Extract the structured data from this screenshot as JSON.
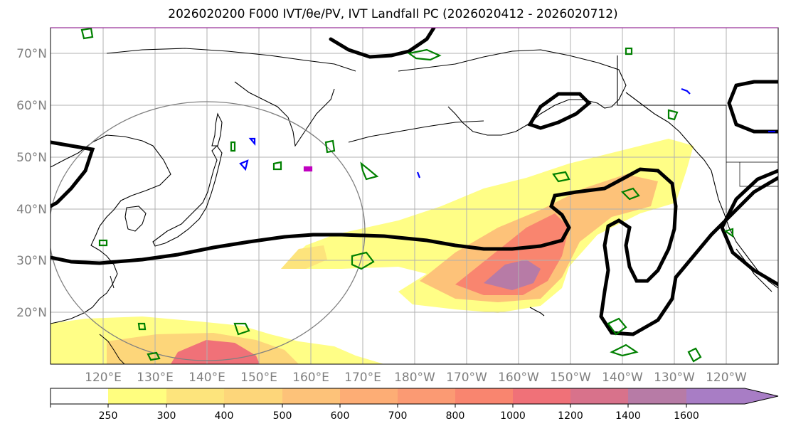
{
  "title": "2026020200 F000 IVT/θe/PV, IVT Landfall PC (2026020412 - 2026020712)",
  "map": {
    "lat_labels": [
      "70°N",
      "60°N",
      "50°N",
      "40°N",
      "30°N",
      "20°N"
    ],
    "lon_labels": [
      "120°E",
      "130°E",
      "140°E",
      "150°E",
      "160°E",
      "170°E",
      "180°W",
      "170°W",
      "160°W",
      "150°W",
      "140°W",
      "130°W",
      "120°W"
    ],
    "region": "North Pacific"
  },
  "colorbar": {
    "ticks": [
      "250",
      "300",
      "400",
      "500",
      "600",
      "700",
      "800",
      "1000",
      "1200",
      "1400",
      "1600"
    ],
    "colors": [
      "#fffe7f",
      "#fde47c",
      "#fdd67a",
      "#fdc279",
      "#fdad75",
      "#fb9a73",
      "#f9856f",
      "#f07178",
      "#d8728b",
      "#b77ba6",
      "#a87dc5"
    ]
  },
  "legend_colors": {
    "theta_e_contour": "#000000",
    "pv_contour": "#008000",
    "pv_low": "#0000ff",
    "pv_alt": "#c000c0",
    "landfall_circle": "#808080"
  }
}
